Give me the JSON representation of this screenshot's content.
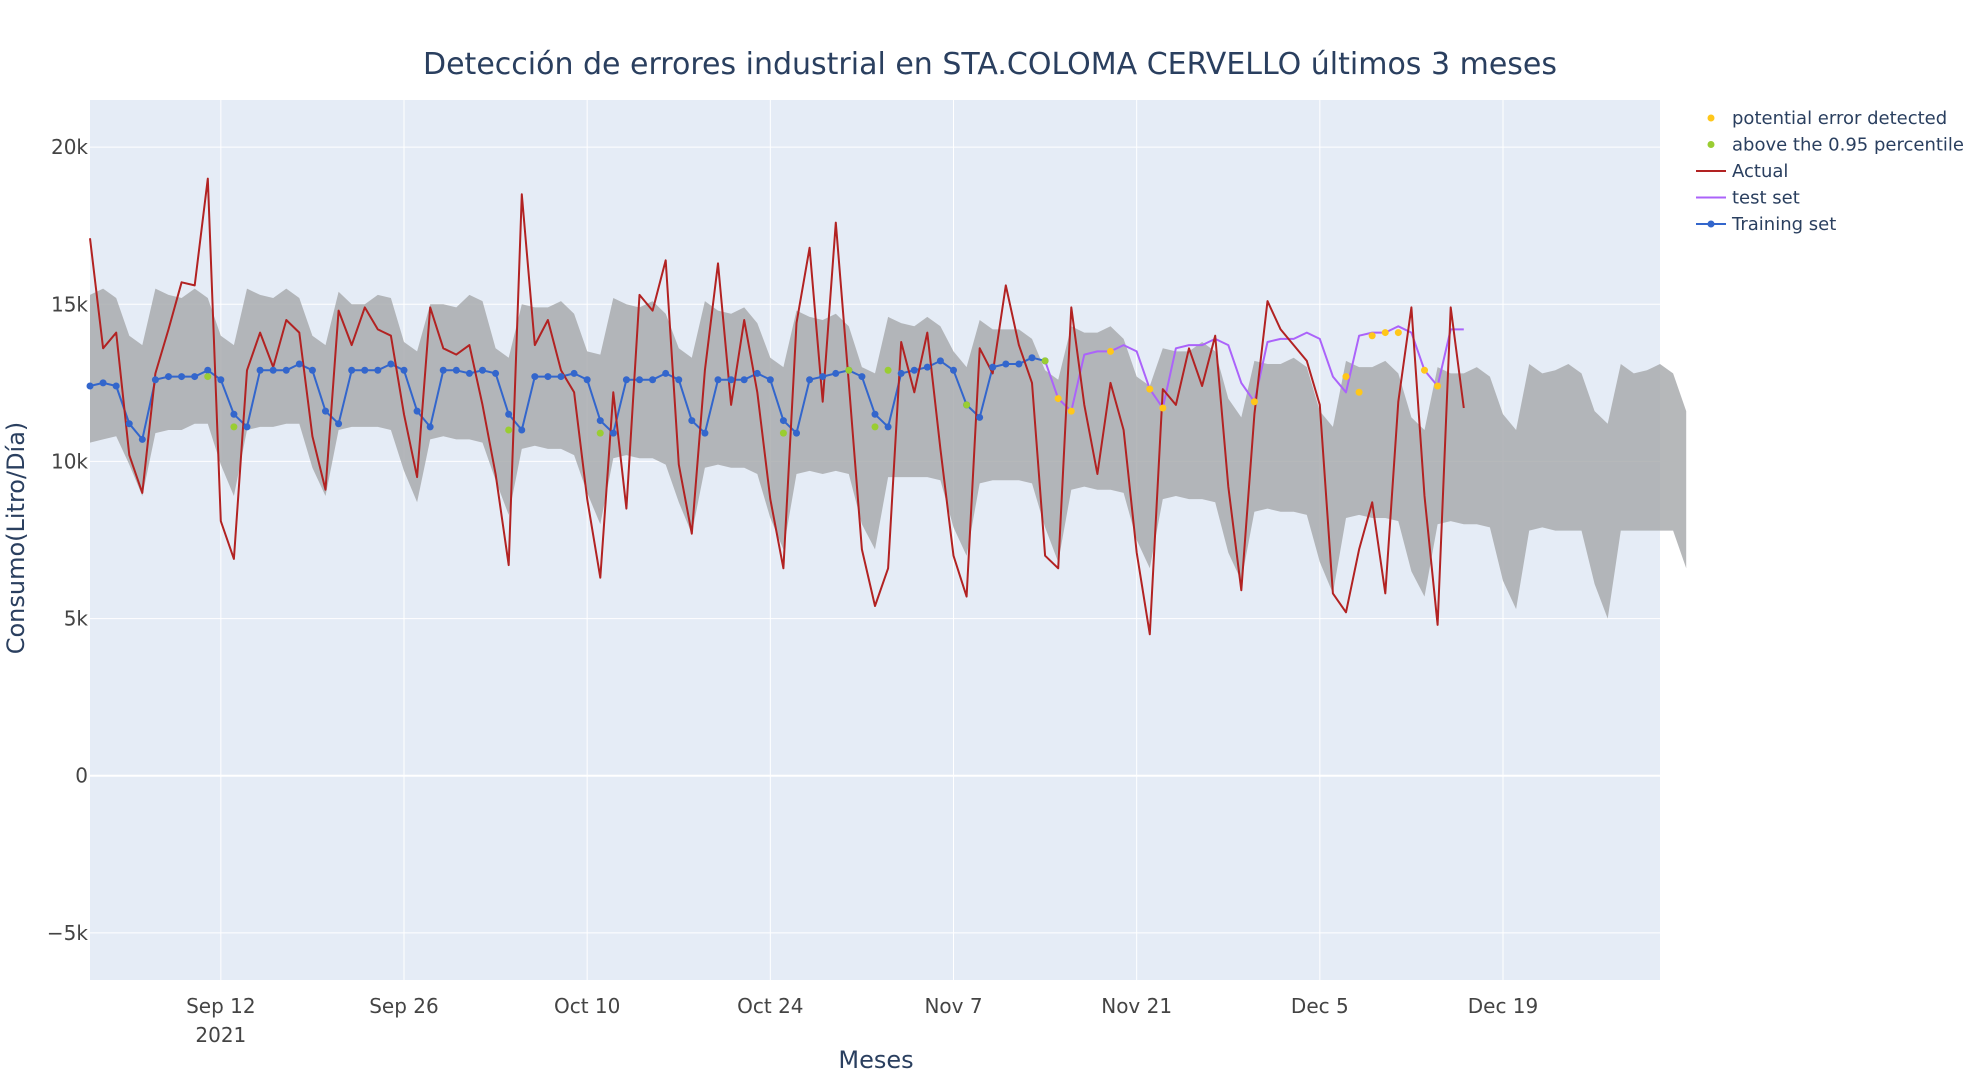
{
  "chart_data": {
    "type": "line",
    "title": "Detección de errores industrial en STA.COLOMA CERVELLO últimos 3 meses",
    "xlabel": "Meses",
    "ylabel": "Consumo(Litro/Día)",
    "x_start": "2021-09-02",
    "x_range": [
      "2021-09-02",
      "2021-12-31"
    ],
    "ylim": [
      -6500,
      21500
    ],
    "x_ticks": [
      {
        "date": "2021-09-12",
        "label": "Sep 12",
        "sublabel": "2021"
      },
      {
        "date": "2021-09-26",
        "label": "Sep 26",
        "sublabel": ""
      },
      {
        "date": "2021-10-10",
        "label": "Oct 10",
        "sublabel": ""
      },
      {
        "date": "2021-10-24",
        "label": "Oct 24",
        "sublabel": ""
      },
      {
        "date": "2021-11-07",
        "label": "Nov 7",
        "sublabel": ""
      },
      {
        "date": "2021-11-21",
        "label": "Nov 21",
        "sublabel": ""
      },
      {
        "date": "2021-12-05",
        "label": "Dec 5",
        "sublabel": ""
      },
      {
        "date": "2021-12-19",
        "label": "Dec 19",
        "sublabel": ""
      }
    ],
    "y_ticks": [
      {
        "value": -5000,
        "label": "−5k"
      },
      {
        "value": 0,
        "label": "0"
      },
      {
        "value": 5000,
        "label": "5k"
      },
      {
        "value": 10000,
        "label": "10k"
      },
      {
        "value": 15000,
        "label": "15k"
      },
      {
        "value": 20000,
        "label": "20k"
      }
    ],
    "grid": true,
    "legend_position": "top-right",
    "colors": {
      "actual": "#b22222",
      "training": "#3366cc",
      "test": "#ab63fa",
      "potential_error": "#ffc71a",
      "above_percentile": "#9acd32",
      "band": "#a9acae",
      "plot_bg": "#e5ecf6",
      "grid": "#ffffff"
    },
    "legend": [
      {
        "key": "potential_error",
        "label": "potential error detected",
        "kind": "marker"
      },
      {
        "key": "above_percentile",
        "label": "above the 0.95 percentile",
        "kind": "marker"
      },
      {
        "key": "actual",
        "label": "Actual",
        "kind": "line"
      },
      {
        "key": "test",
        "label": "test set",
        "kind": "line"
      },
      {
        "key": "training",
        "label": "Training set",
        "kind": "line-marker"
      }
    ],
    "band": {
      "name": "confidence interval",
      "upper": [
        15300,
        15500,
        15200,
        14000,
        13700,
        15500,
        15300,
        15200,
        15500,
        15200,
        14000,
        13700,
        15500,
        15300,
        15200,
        15500,
        15200,
        14000,
        13700,
        15400,
        15000,
        15000,
        15300,
        15200,
        13800,
        13500,
        15000,
        15000,
        14900,
        15300,
        15100,
        13600,
        13300,
        15000,
        14900,
        14900,
        15100,
        14700,
        13500,
        13400,
        15200,
        15000,
        14900,
        15100,
        14700,
        13600,
        13300,
        15100,
        14800,
        14700,
        14900,
        14400,
        13300,
        13000,
        14800,
        14600,
        14500,
        14700,
        14300,
        13000,
        12800,
        14600,
        14400,
        14300,
        14600,
        14300,
        13500,
        13000,
        14500,
        14200,
        14200,
        14200,
        13900,
        12900,
        12600,
        14300,
        14100,
        14100,
        14300,
        13900,
        12700,
        12400,
        13600,
        13500,
        13500,
        13800,
        13500,
        12000,
        11400,
        13200,
        13100,
        13100,
        13300,
        13000,
        11600,
        11100,
        13200,
        13000,
        13000,
        13200,
        12800,
        11400,
        11000,
        13000,
        12800,
        12800,
        13000,
        12700,
        11500,
        11000,
        13100,
        12800,
        12900,
        13100,
        12800,
        11600,
        11200,
        13100,
        12800,
        12900,
        13100,
        12800,
        11600
      ],
      "lower": [
        10600,
        10700,
        10800,
        9900,
        8900,
        10900,
        11000,
        11000,
        11200,
        11200,
        9900,
        8900,
        11000,
        11100,
        11100,
        11200,
        11200,
        9800,
        8900,
        11000,
        11100,
        11100,
        11100,
        11000,
        9700,
        8700,
        10700,
        10800,
        10700,
        10700,
        10600,
        9400,
        8300,
        10400,
        10500,
        10400,
        10400,
        10200,
        9000,
        8000,
        10100,
        10200,
        10100,
        10100,
        9900,
        8700,
        7700,
        9800,
        9900,
        9800,
        9800,
        9600,
        8200,
        7200,
        9600,
        9700,
        9600,
        9700,
        9600,
        8000,
        7200,
        9500,
        9500,
        9500,
        9500,
        9400,
        7900,
        7000,
        9300,
        9400,
        9400,
        9400,
        9300,
        7900,
        6800,
        9100,
        9200,
        9100,
        9100,
        9000,
        7500,
        6600,
        8800,
        8900,
        8800,
        8800,
        8700,
        7100,
        6200,
        8400,
        8500,
        8400,
        8400,
        8300,
        6800,
        5800,
        8200,
        8300,
        8200,
        8200,
        8100,
        6500,
        5700,
        8000,
        8100,
        8000,
        8000,
        7900,
        6200,
        5300,
        7800,
        7900,
        7800,
        7800,
        7800,
        6100,
        5000,
        7800,
        7800,
        7800,
        7800,
        7800,
        6600
      ]
    },
    "series": [
      {
        "key": "actual",
        "name": "Actual",
        "start_index": 0,
        "values": [
          17100,
          13600,
          14100,
          10200,
          9000,
          12800,
          14200,
          15700,
          15600,
          19000,
          8100,
          6900,
          12900,
          14100,
          13000,
          14500,
          14100,
          10800,
          9100,
          14800,
          13700,
          14900,
          14200,
          14000,
          11500,
          9500,
          14900,
          13600,
          13400,
          13700,
          11800,
          9600,
          6700,
          18500,
          13700,
          14500,
          12900,
          12200,
          8800,
          6300,
          12200,
          8500,
          15300,
          14800,
          16400,
          9900,
          7700,
          12900,
          16300,
          11800,
          14500,
          12200,
          8800,
          6600,
          14400,
          16800,
          11900,
          17600,
          12500,
          7200,
          5400,
          6600,
          13800,
          12200,
          14100,
          10400,
          7000,
          5700,
          13600,
          12800,
          15600,
          13700,
          12500,
          7000,
          6600,
          14900,
          11800,
          9600,
          12500,
          11000,
          7100,
          4500,
          12300,
          11800,
          13600,
          12400,
          14000,
          9200,
          5900,
          11500,
          15100,
          14200,
          13700,
          13200,
          11800,
          5800,
          5200,
          7200,
          8700,
          5800,
          11900,
          14900,
          8900,
          4800,
          14900,
          11700
        ]
      },
      {
        "key": "training",
        "name": "Training set",
        "start_index": 0,
        "values": [
          12400,
          12500,
          12400,
          11200,
          10700,
          12600,
          12700,
          12700,
          12700,
          12900,
          12600,
          11500,
          11100,
          12900,
          12900,
          12900,
          13100,
          12900,
          11600,
          11200,
          12900,
          12900,
          12900,
          13100,
          12900,
          11600,
          11100,
          12900,
          12900,
          12800,
          12900,
          12800,
          11500,
          11000,
          12700,
          12700,
          12700,
          12800,
          12600,
          11300,
          10900,
          12600,
          12600,
          12600,
          12800,
          12600,
          11300,
          10900,
          12600,
          12600,
          12600,
          12800,
          12600,
          11300,
          10900,
          12600,
          12700,
          12800,
          12900,
          12700,
          11500,
          11100,
          12800,
          12900,
          13000,
          13200,
          12900,
          11800,
          11400,
          13000,
          13100,
          13100,
          13300,
          13200
        ]
      },
      {
        "key": "test",
        "name": "test set",
        "start_index": 73,
        "values": [
          13200,
          12000,
          11600,
          13400,
          13500,
          13500,
          13700,
          13500,
          12300,
          11700,
          13600,
          13700,
          13700,
          13900,
          13700,
          12500,
          11900,
          13800,
          13900,
          13900,
          14100,
          13900,
          12700,
          12200,
          14000,
          14100,
          14100,
          14300,
          14100,
          12900,
          12400,
          14200,
          14200
        ]
      },
      {
        "key": "potential_error",
        "name": "potential error detected",
        "points": [
          {
            "index": 74,
            "value": 12000
          },
          {
            "index": 75,
            "value": 11600
          },
          {
            "index": 78,
            "value": 13500
          },
          {
            "index": 81,
            "value": 12300
          },
          {
            "index": 82,
            "value": 11700
          },
          {
            "index": 89,
            "value": 11900
          },
          {
            "index": 96,
            "value": 12700
          },
          {
            "index": 97,
            "value": 12200
          },
          {
            "index": 98,
            "value": 14000
          },
          {
            "index": 99,
            "value": 14100
          },
          {
            "index": 100,
            "value": 14100
          },
          {
            "index": 102,
            "value": 12900
          },
          {
            "index": 103,
            "value": 12400
          }
        ]
      },
      {
        "key": "above_percentile",
        "name": "above the 0.95 percentile",
        "points": [
          {
            "index": 9,
            "value": 12700
          },
          {
            "index": 11,
            "value": 11100
          },
          {
            "index": 32,
            "value": 11000
          },
          {
            "index": 39,
            "value": 10900
          },
          {
            "index": 53,
            "value": 10900
          },
          {
            "index": 58,
            "value": 12900
          },
          {
            "index": 60,
            "value": 11100
          },
          {
            "index": 61,
            "value": 12900
          },
          {
            "index": 67,
            "value": 11800
          },
          {
            "index": 73,
            "value": 13200
          }
        ]
      }
    ]
  }
}
